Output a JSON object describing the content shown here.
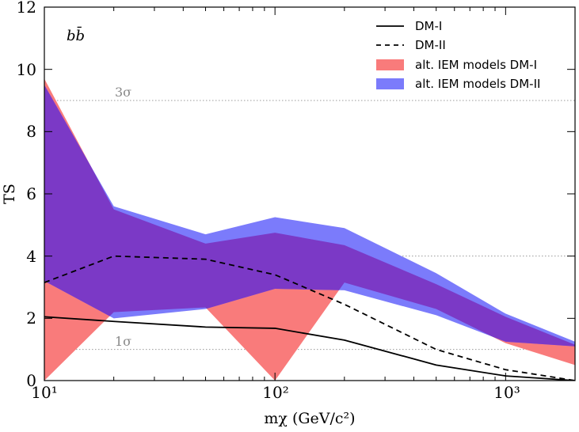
{
  "chart_data": {
    "type": "area",
    "title": "",
    "panel_label": "bb̄",
    "xlabel": "mχ (GeV/c²)",
    "ylabel": "TS",
    "xscale": "log",
    "xlim": [
      10,
      2000
    ],
    "ylim": [
      0,
      12
    ],
    "y_ticks": [
      0,
      2,
      4,
      6,
      8,
      10,
      12
    ],
    "y_tick_labels": [
      "0",
      "2",
      "4",
      "6",
      "8",
      "10",
      "12"
    ],
    "x_major_ticks": [
      10,
      100,
      1000
    ],
    "x_tick_labels": [
      "10¹",
      "10²",
      "10³"
    ],
    "significance_lines": [
      {
        "label": "1σ",
        "value": 1.0
      },
      {
        "label": "3σ",
        "value": 9.0
      },
      {
        "label": "",
        "value": 4.0
      }
    ],
    "bands": [
      {
        "name": "alt. IEM models DM-I",
        "color": "#f97b7b",
        "x": [
          10,
          20,
          50,
          100,
          200,
          500,
          1000,
          2000
        ],
        "upper": [
          9.7,
          5.5,
          4.4,
          4.75,
          4.35,
          3.1,
          2.05,
          1.15
        ],
        "lower": [
          0.0,
          2.2,
          2.35,
          0.0,
          3.15,
          2.3,
          1.2,
          0.5
        ]
      },
      {
        "name": "alt. IEM models DM-II",
        "color": "#7b7bfb",
        "x": [
          10,
          20,
          50,
          100,
          200,
          500,
          1000,
          2000
        ],
        "upper": [
          9.5,
          5.6,
          4.7,
          5.25,
          4.9,
          3.45,
          2.15,
          1.25
        ],
        "lower": [
          3.2,
          2.0,
          2.3,
          2.95,
          2.9,
          2.1,
          1.25,
          1.1
        ]
      }
    ],
    "series": [
      {
        "name": "DM-I",
        "style": "solid",
        "x": [
          10,
          20,
          50,
          100,
          200,
          500,
          1000,
          2000
        ],
        "values": [
          2.05,
          1.9,
          1.72,
          1.68,
          1.3,
          0.5,
          0.15,
          0.0
        ]
      },
      {
        "name": "DM-II",
        "style": "dashed",
        "x": [
          10,
          20,
          50,
          100,
          200,
          500,
          1000,
          2000
        ],
        "values": [
          3.15,
          4.0,
          3.9,
          3.4,
          2.45,
          1.0,
          0.35,
          0.0
        ]
      }
    ],
    "legend": {
      "placement": "top-right",
      "entries": [
        {
          "label": "DM-I",
          "kind": "solid"
        },
        {
          "label": "DM-II",
          "kind": "dashed"
        },
        {
          "label": "alt. IEM models DM-I",
          "kind": "patch",
          "color": "#f97b7b"
        },
        {
          "label": "alt. IEM models DM-II",
          "kind": "patch",
          "color": "#7b7bfb"
        }
      ]
    },
    "overlap_color": "#7b39c6"
  }
}
